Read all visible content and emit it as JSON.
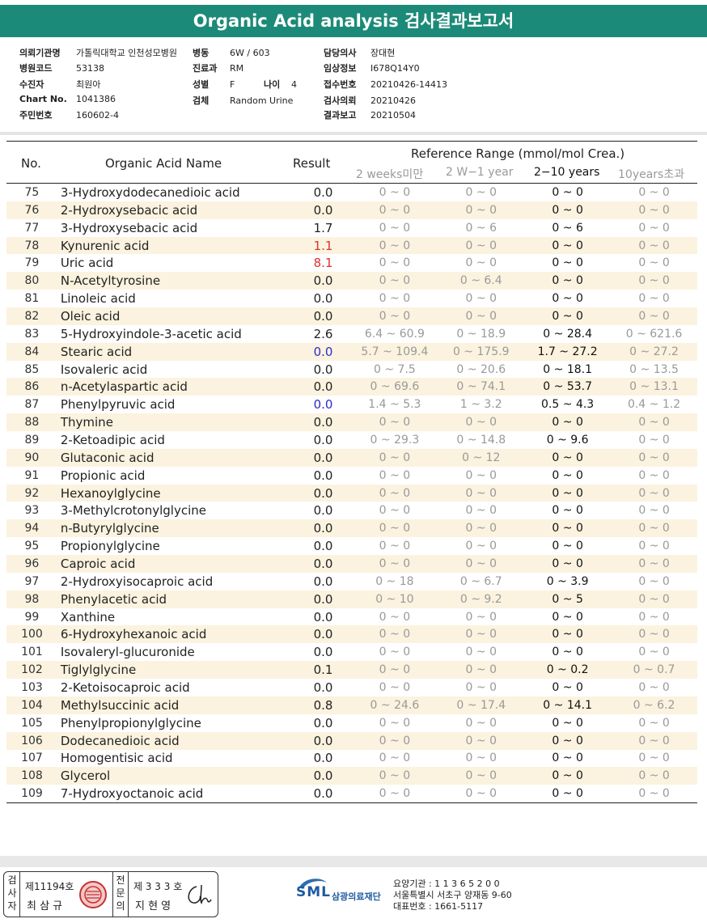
{
  "title": "Organic Acid analysis 검사결과보고서",
  "info": {
    "col1": [
      {
        "label": "의뢰기관명",
        "value": "가톨릭대학교 인천성모병원"
      },
      {
        "label": "병원코드",
        "value": "53138"
      },
      {
        "label": "수진자",
        "value": "최원아"
      },
      {
        "label": "Chart No.",
        "value": "1041386"
      },
      {
        "label": "주민번호",
        "value": "160602-4"
      }
    ],
    "col2": [
      {
        "label": "병동",
        "value": "6W / 603"
      },
      {
        "label": "진료과",
        "value": "RM"
      },
      {
        "label": "성별",
        "value": "F"
      },
      {
        "label": "검체",
        "value": "Random Urine"
      }
    ],
    "age_label": "나이",
    "age_value": "4",
    "col3": [
      {
        "label": "담당의사",
        "value": "장대현"
      },
      {
        "label": "임상정보",
        "value": "I678Q14Y0"
      },
      {
        "label": "접수번호",
        "value": "20210426-14413"
      },
      {
        "label": "검사의뢰",
        "value": "20210426"
      },
      {
        "label": "결과보고",
        "value": "20210504"
      }
    ]
  },
  "table": {
    "headers": {
      "no": "No.",
      "name": "Organic Acid Name",
      "result": "Result",
      "ref_title": "Reference Range (mmol/mol Crea.)",
      "ref_cols": [
        "2 weeks미만",
        "2 W−1 year",
        "2−10 years",
        "10years초과"
      ]
    },
    "rows": [
      {
        "no": "75",
        "name": "3-Hydroxydodecanedioic acid",
        "result": "0.0",
        "flag": "",
        "r1": "0 ~ 0",
        "r2": "0 ~ 0",
        "r3": "0 ~ 0",
        "r4": "0 ~ 0"
      },
      {
        "no": "76",
        "name": "2-Hydroxysebacic acid",
        "result": "0.0",
        "flag": "",
        "r1": "0 ~ 0",
        "r2": "0 ~ 0",
        "r3": "0 ~ 0",
        "r4": "0 ~ 0"
      },
      {
        "no": "77",
        "name": "3-Hydroxysebacic acid",
        "result": "1.7",
        "flag": "",
        "r1": "0 ~ 0",
        "r2": "0 ~ 6",
        "r3": "0 ~ 6",
        "r4": "0 ~ 0"
      },
      {
        "no": "78",
        "name": "Kynurenic acid",
        "result": "1.1",
        "flag": "high",
        "r1": "0 ~ 0",
        "r2": "0 ~ 0",
        "r3": "0 ~ 0",
        "r4": "0 ~ 0"
      },
      {
        "no": "79",
        "name": "Uric acid",
        "result": "8.1",
        "flag": "high",
        "r1": "0 ~ 0",
        "r2": "0 ~ 0",
        "r3": "0 ~ 0",
        "r4": "0 ~ 0"
      },
      {
        "no": "80",
        "name": "N-Acetyltyrosine",
        "result": "0.0",
        "flag": "",
        "r1": "0 ~ 0",
        "r2": "0 ~ 6.4",
        "r3": "0 ~ 0",
        "r4": "0 ~ 0"
      },
      {
        "no": "81",
        "name": "Linoleic acid",
        "result": "0.0",
        "flag": "",
        "r1": "0 ~ 0",
        "r2": "0 ~ 0",
        "r3": "0 ~ 0",
        "r4": "0 ~ 0"
      },
      {
        "no": "82",
        "name": "Oleic acid",
        "result": "0.0",
        "flag": "",
        "r1": "0 ~ 0",
        "r2": "0 ~ 0",
        "r3": "0 ~ 0",
        "r4": "0 ~ 0"
      },
      {
        "no": "83",
        "name": "5-Hydroxyindole-3-acetic acid",
        "result": "2.6",
        "flag": "",
        "r1": "6.4 ~ 60.9",
        "r2": "0 ~ 18.9",
        "r3": "0 ~ 28.4",
        "r4": "0 ~ 621.6"
      },
      {
        "no": "84",
        "name": "Stearic acid",
        "result": "0.0",
        "flag": "low",
        "r1": "5.7 ~ 109.4",
        "r2": "0 ~ 175.9",
        "r3": "1.7 ~ 27.2",
        "r4": "0 ~ 27.2"
      },
      {
        "no": "85",
        "name": "Isovaleric acid",
        "result": "0.0",
        "flag": "",
        "r1": "0 ~ 7.5",
        "r2": "0 ~ 20.6",
        "r3": "0 ~ 18.1",
        "r4": "0 ~ 13.5"
      },
      {
        "no": "86",
        "name": "n-Acetylaspartic acid",
        "result": "0.0",
        "flag": "",
        "r1": "0 ~ 69.6",
        "r2": "0 ~ 74.1",
        "r3": "0 ~ 53.7",
        "r4": "0 ~ 13.1"
      },
      {
        "no": "87",
        "name": "Phenylpyruvic acid",
        "result": "0.0",
        "flag": "low",
        "r1": "1.4 ~ 5.3",
        "r2": "1 ~ 3.2",
        "r3": "0.5 ~ 4.3",
        "r4": "0.4 ~ 1.2"
      },
      {
        "no": "88",
        "name": "Thymine",
        "result": "0.0",
        "flag": "",
        "r1": "0 ~ 0",
        "r2": "0 ~ 0",
        "r3": "0 ~ 0",
        "r4": "0 ~ 0"
      },
      {
        "no": "89",
        "name": "2-Ketoadipic acid",
        "result": "0.0",
        "flag": "",
        "r1": "0 ~ 29.3",
        "r2": "0 ~ 14.8",
        "r3": "0 ~ 9.6",
        "r4": "0 ~ 0"
      },
      {
        "no": "90",
        "name": "Glutaconic acid",
        "result": "0.0",
        "flag": "",
        "r1": "0 ~ 0",
        "r2": "0 ~ 12",
        "r3": "0 ~ 0",
        "r4": "0 ~ 0"
      },
      {
        "no": "91",
        "name": "Propionic acid",
        "result": "0.0",
        "flag": "",
        "r1": "0 ~ 0",
        "r2": "0 ~ 0",
        "r3": "0 ~ 0",
        "r4": "0 ~ 0"
      },
      {
        "no": "92",
        "name": "Hexanoylglycine",
        "result": "0.0",
        "flag": "",
        "r1": "0 ~ 0",
        "r2": "0 ~ 0",
        "r3": "0 ~ 0",
        "r4": "0 ~ 0"
      },
      {
        "no": "93",
        "name": "3-Methylcrotonylglycine",
        "result": "0.0",
        "flag": "",
        "r1": "0 ~ 0",
        "r2": "0 ~ 0",
        "r3": "0 ~ 0",
        "r4": "0 ~ 0"
      },
      {
        "no": "94",
        "name": "n-Butyrylglycine",
        "result": "0.0",
        "flag": "",
        "r1": "0 ~ 0",
        "r2": "0 ~ 0",
        "r3": "0 ~ 0",
        "r4": "0 ~ 0"
      },
      {
        "no": "95",
        "name": "Propionylglycine",
        "result": "0.0",
        "flag": "",
        "r1": "0 ~ 0",
        "r2": "0 ~ 0",
        "r3": "0 ~ 0",
        "r4": "0 ~ 0"
      },
      {
        "no": "96",
        "name": "Caproic acid",
        "result": "0.0",
        "flag": "",
        "r1": "0 ~ 0",
        "r2": "0 ~ 0",
        "r3": "0 ~ 0",
        "r4": "0 ~ 0"
      },
      {
        "no": "97",
        "name": "2-Hydroxyisocaproic acid",
        "result": "0.0",
        "flag": "",
        "r1": "0 ~ 18",
        "r2": "0 ~ 6.7",
        "r3": "0 ~ 3.9",
        "r4": "0 ~ 0"
      },
      {
        "no": "98",
        "name": "Phenylacetic acid",
        "result": "0.0",
        "flag": "",
        "r1": "0 ~ 10",
        "r2": "0 ~ 9.2",
        "r3": "0 ~ 5",
        "r4": "0 ~ 0"
      },
      {
        "no": "99",
        "name": "Xanthine",
        "result": "0.0",
        "flag": "",
        "r1": "0 ~ 0",
        "r2": "0 ~ 0",
        "r3": "0 ~ 0",
        "r4": "0 ~ 0"
      },
      {
        "no": "100",
        "name": "6-Hydroxyhexanoic acid",
        "result": "0.0",
        "flag": "",
        "r1": "0 ~ 0",
        "r2": "0 ~ 0",
        "r3": "0 ~ 0",
        "r4": "0 ~ 0"
      },
      {
        "no": "101",
        "name": "Isovaleryl-glucuronide",
        "result": "0.0",
        "flag": "",
        "r1": "0 ~ 0",
        "r2": "0 ~ 0",
        "r3": "0 ~ 0",
        "r4": "0 ~ 0"
      },
      {
        "no": "102",
        "name": "Tiglylglycine",
        "result": "0.1",
        "flag": "",
        "r1": "0 ~ 0",
        "r2": "0 ~ 0",
        "r3": "0 ~ 0.2",
        "r4": "0 ~ 0.7"
      },
      {
        "no": "103",
        "name": "2-Ketoisocaproic acid",
        "result": "0.0",
        "flag": "",
        "r1": "0 ~ 0",
        "r2": "0 ~ 0",
        "r3": "0 ~ 0",
        "r4": "0 ~ 0"
      },
      {
        "no": "104",
        "name": "Methylsuccinic acid",
        "result": "0.8",
        "flag": "",
        "r1": "0 ~ 24.6",
        "r2": "0 ~ 17.4",
        "r3": "0 ~ 14.1",
        "r4": "0 ~ 6.2"
      },
      {
        "no": "105",
        "name": "Phenylpropionylglycine",
        "result": "0.0",
        "flag": "",
        "r1": "0 ~ 0",
        "r2": "0 ~ 0",
        "r3": "0 ~ 0",
        "r4": "0 ~ 0"
      },
      {
        "no": "106",
        "name": "Dodecanedioic acid",
        "result": "0.0",
        "flag": "",
        "r1": "0 ~ 0",
        "r2": "0 ~ 0",
        "r3": "0 ~ 0",
        "r4": "0 ~ 0"
      },
      {
        "no": "107",
        "name": "Homogentisic acid",
        "result": "0.0",
        "flag": "",
        "r1": "0 ~ 0",
        "r2": "0 ~ 0",
        "r3": "0 ~ 0",
        "r4": "0 ~ 0"
      },
      {
        "no": "108",
        "name": "Glycerol",
        "result": "0.0",
        "flag": "",
        "r1": "0 ~ 0",
        "r2": "0 ~ 0",
        "r3": "0 ~ 0",
        "r4": "0 ~ 0"
      },
      {
        "no": "109",
        "name": "7-Hydroxyoctanoic acid",
        "result": "0.0",
        "flag": "",
        "r1": "0 ~ 0",
        "r2": "0 ~ 0",
        "r3": "0 ~ 0",
        "r4": "0 ~ 0"
      }
    ]
  },
  "footer": {
    "stamp_left_vertical": "검사자",
    "stamp_left_no": "제11194호",
    "stamp_left_name": "최 삼 규",
    "stamp_right_vertical": "전문의",
    "stamp_right_no": "제 3 3 3 호",
    "stamp_right_name": "지 현 영",
    "logo_text": "SML",
    "org_name": "삼광의료재단",
    "addr_lines": [
      "요양기관 : 1 1 3 6 5 2 0 0",
      "서울특별시 서초구 양재동 9-60",
      "대표번호 : 1661-5117"
    ]
  },
  "colors": {
    "banner": "#1c8a78",
    "high": "#e03030",
    "low": "#2a2ad0",
    "row_alt": "#fbf3df"
  }
}
